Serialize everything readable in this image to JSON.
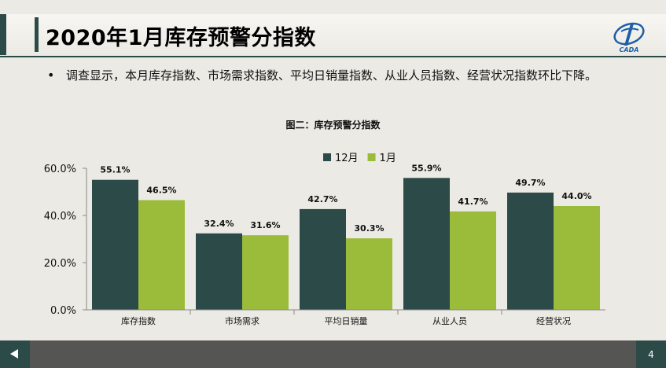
{
  "slide": {
    "title": "2020年1月库存预警分指数",
    "bullet": "调查显示，本月库存指数、市场需求指数、平均日销量指数、从业人员指数、经营状况指数环比下降。",
    "page_number": "4",
    "logo_text": "CADA"
  },
  "chart_data": {
    "type": "bar",
    "title": "图二：库存预警分指数",
    "categories": [
      "库存指数",
      "市场需求",
      "平均日销量",
      "从业人员",
      "经营状况"
    ],
    "series": [
      {
        "name": "12月",
        "values": [
          55.1,
          32.4,
          42.7,
          55.9,
          49.7
        ],
        "labels": [
          "55.1%",
          "32.4%",
          "42.7%",
          "55.9%",
          "49.7%"
        ],
        "color": "#2b4a48"
      },
      {
        "name": "1月",
        "values": [
          46.5,
          31.6,
          30.3,
          41.7,
          44.0
        ],
        "labels": [
          "46.5%",
          "31.6%",
          "30.3%",
          "41.7%",
          "44.0%"
        ],
        "color": "#9bbb3b"
      }
    ],
    "y_ticks": [
      "0.0%",
      "20.0%",
      "40.0%",
      "60.0%"
    ],
    "ylim": [
      0,
      60
    ],
    "legend_position": "top-right",
    "grid": false
  },
  "colors": {
    "accent": "#2b4a48",
    "secondary": "#9bbb3b",
    "footer": "#555553"
  }
}
